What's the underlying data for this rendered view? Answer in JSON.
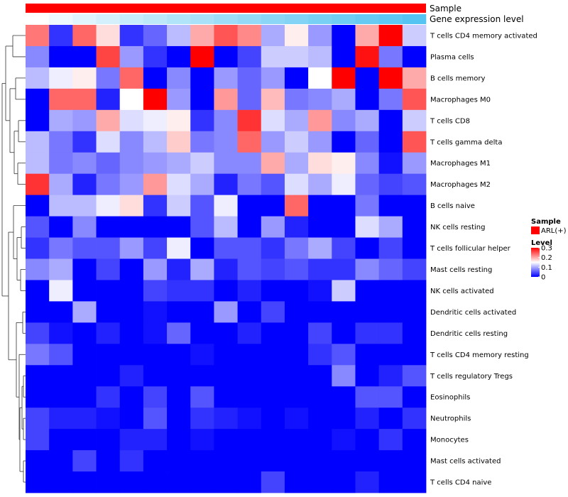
{
  "chart_data": {
    "type": "heatmap",
    "annotations": [
      {
        "name": "Sample",
        "style": "solid",
        "color": "#ff0000"
      },
      {
        "name": "Gene expression level",
        "style": "gradient",
        "from": "#ffffff",
        "to": "#56c4f2"
      }
    ],
    "rows": [
      "T cells CD4 memory activated",
      "Plasma cells",
      "B cells memory",
      "Macrophages M0",
      "T cells CD8",
      "T cells gamma delta",
      "Macrophages M1",
      "Macrophages M2",
      "B cells naive",
      "NK cells resting",
      "T cells follicular helper",
      "Mast cells resting",
      "NK cells activated",
      "Dendritic cells activated",
      "Dendritic cells resting",
      "T cells CD4 memory resting",
      "T cells regulatory  Tregs",
      "Eosinophils",
      "Neutrophils",
      "Monocytes",
      "Mast cells activated",
      "T cells CD4 naive"
    ],
    "n_columns": 17,
    "values": [
      [
        0.23,
        0.03,
        0.24,
        0.17,
        0.03,
        0.06,
        0.11,
        0.2,
        0.25,
        0.22,
        0.1,
        0.16,
        0.09,
        0.0,
        0.2,
        0.3,
        0.12
      ],
      [
        0.08,
        0.0,
        0.0,
        0.26,
        0.09,
        0.03,
        0.0,
        0.3,
        0.0,
        0.04,
        0.12,
        0.12,
        0.11,
        0.0,
        0.29,
        0.07,
        0.0
      ],
      [
        0.11,
        0.14,
        0.16,
        0.07,
        0.24,
        0.0,
        0.08,
        0.0,
        0.09,
        0.06,
        0.09,
        0.0,
        0.15,
        0.3,
        0.0,
        0.3,
        0.2
      ],
      [
        0.0,
        0.24,
        0.24,
        0.02,
        0.15,
        0.3,
        0.09,
        0.0,
        0.21,
        0.06,
        0.19,
        0.07,
        0.08,
        0.1,
        0.0,
        0.07,
        0.25
      ],
      [
        0.0,
        0.1,
        0.09,
        0.2,
        0.13,
        0.14,
        0.16,
        0.03,
        0.08,
        0.27,
        0.13,
        0.1,
        0.21,
        0.08,
        0.1,
        0.0,
        0.12
      ],
      [
        0.11,
        0.07,
        0.03,
        0.13,
        0.08,
        0.11,
        0.18,
        0.07,
        0.08,
        0.24,
        0.09,
        0.12,
        0.09,
        0.0,
        0.06,
        0.0,
        0.25
      ],
      [
        0.11,
        0.07,
        0.08,
        0.06,
        0.08,
        0.09,
        0.1,
        0.12,
        0.08,
        0.08,
        0.2,
        0.1,
        0.17,
        0.16,
        0.08,
        0.01,
        0.09
      ],
      [
        0.27,
        0.1,
        0.02,
        0.07,
        0.09,
        0.21,
        0.13,
        0.1,
        0.02,
        0.07,
        0.05,
        0.13,
        0.1,
        0.14,
        0.06,
        0.04,
        0.05
      ],
      [
        0.0,
        0.11,
        0.11,
        0.14,
        0.17,
        0.03,
        0.12,
        0.05,
        0.14,
        0.0,
        0.0,
        0.24,
        0.0,
        0.0,
        0.07,
        0.0,
        0.0
      ],
      [
        0.05,
        0.0,
        0.08,
        0.0,
        0.0,
        0.0,
        0.0,
        0.05,
        0.11,
        0.0,
        0.09,
        0.02,
        0.0,
        0.0,
        0.13,
        0.1,
        0.0
      ],
      [
        0.03,
        0.07,
        0.05,
        0.05,
        0.09,
        0.04,
        0.14,
        0.0,
        0.05,
        0.05,
        0.03,
        0.07,
        0.1,
        0.04,
        0.0,
        0.04,
        0.0
      ],
      [
        0.08,
        0.1,
        0.0,
        0.04,
        0.0,
        0.09,
        0.02,
        0.1,
        0.02,
        0.05,
        0.04,
        0.05,
        0.03,
        0.03,
        0.08,
        0.06,
        0.04
      ],
      [
        0.0,
        0.14,
        0.0,
        0.0,
        0.0,
        0.04,
        0.03,
        0.03,
        0.0,
        0.02,
        0.0,
        0.0,
        0.01,
        0.12,
        0.0,
        0.0,
        0.0
      ],
      [
        0.0,
        0.0,
        0.1,
        0.0,
        0.0,
        0.01,
        0.0,
        0.0,
        0.09,
        0.0,
        0.04,
        0.0,
        0.0,
        0.0,
        0.0,
        0.0,
        0.0
      ],
      [
        0.04,
        0.01,
        0.0,
        0.02,
        0.0,
        0.01,
        0.06,
        0.0,
        0.0,
        0.02,
        0.0,
        0.0,
        0.04,
        0.0,
        0.03,
        0.03,
        0.0
      ],
      [
        0.07,
        0.05,
        0.0,
        0.0,
        0.0,
        0.0,
        0.0,
        0.01,
        0.0,
        0.0,
        0.0,
        0.0,
        0.03,
        0.05,
        0.0,
        0.0,
        0.0
      ],
      [
        0.0,
        0.0,
        0.0,
        0.0,
        0.02,
        0.0,
        0.0,
        0.0,
        0.0,
        0.0,
        0.0,
        0.0,
        0.0,
        0.08,
        0.0,
        0.02,
        0.05
      ],
      [
        0.0,
        0.0,
        0.0,
        0.03,
        0.0,
        0.04,
        0.0,
        0.05,
        0.0,
        0.0,
        0.0,
        0.0,
        0.0,
        0.0,
        0.05,
        0.05,
        0.0
      ],
      [
        0.04,
        0.02,
        0.02,
        0.01,
        0.0,
        0.05,
        0.0,
        0.03,
        0.02,
        0.01,
        0.0,
        0.01,
        0.0,
        0.0,
        0.02,
        0.0,
        0.03
      ],
      [
        0.04,
        0.0,
        0.0,
        0.0,
        0.02,
        0.02,
        0.0,
        0.01,
        0.0,
        0.0,
        0.0,
        0.0,
        0.0,
        0.01,
        0.0,
        0.03,
        0.0
      ],
      [
        0.0,
        0.0,
        0.04,
        0.0,
        0.03,
        0.0,
        0.0,
        0.0,
        0.0,
        0.0,
        0.0,
        0.0,
        0.0,
        0.0,
        0.0,
        0.0,
        0.0
      ],
      [
        0.0,
        0.0,
        0.0,
        0.0,
        0.0,
        0.0,
        0.0,
        0.0,
        0.0,
        0.0,
        0.04,
        0.0,
        0.0,
        0.0,
        0.02,
        0.0,
        0.0
      ]
    ],
    "color_scale": {
      "min": 0,
      "max": 0.3,
      "low": "#0000ff",
      "mid": "#ffffff",
      "midpoint": 0.15,
      "high": "#ff0000"
    },
    "row_dendrogram": true,
    "legend": {
      "sample": {
        "title": "Sample",
        "entry": "ARL(+)",
        "color": "#ff0000"
      },
      "level": {
        "title": "Level",
        "ticks": [
          "0.3",
          "0.2",
          "0.1",
          "0"
        ],
        "tick_values": [
          0.3,
          0.2,
          0.1,
          0
        ]
      }
    }
  }
}
